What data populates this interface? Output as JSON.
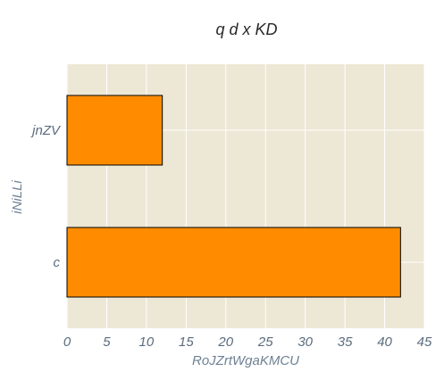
{
  "chart_data": {
    "type": "bar",
    "orientation": "horizontal",
    "title": "q d x KD",
    "xlabel": "RoJZrtWgaKMCU",
    "ylabel": "iNiLLi",
    "categories": [
      "jnZV",
      "c"
    ],
    "values": [
      12,
      42
    ],
    "xlim": [
      0,
      45
    ],
    "xticks": [
      "0",
      "5",
      "10",
      "15",
      "20",
      "25",
      "30",
      "35",
      "40",
      "45"
    ],
    "grid": true,
    "colors": {
      "plot_background": "#EDE7D6",
      "grid": "#FFFFFF",
      "bar_fill": "#FF8C00",
      "bar_edge": "#000000"
    }
  }
}
